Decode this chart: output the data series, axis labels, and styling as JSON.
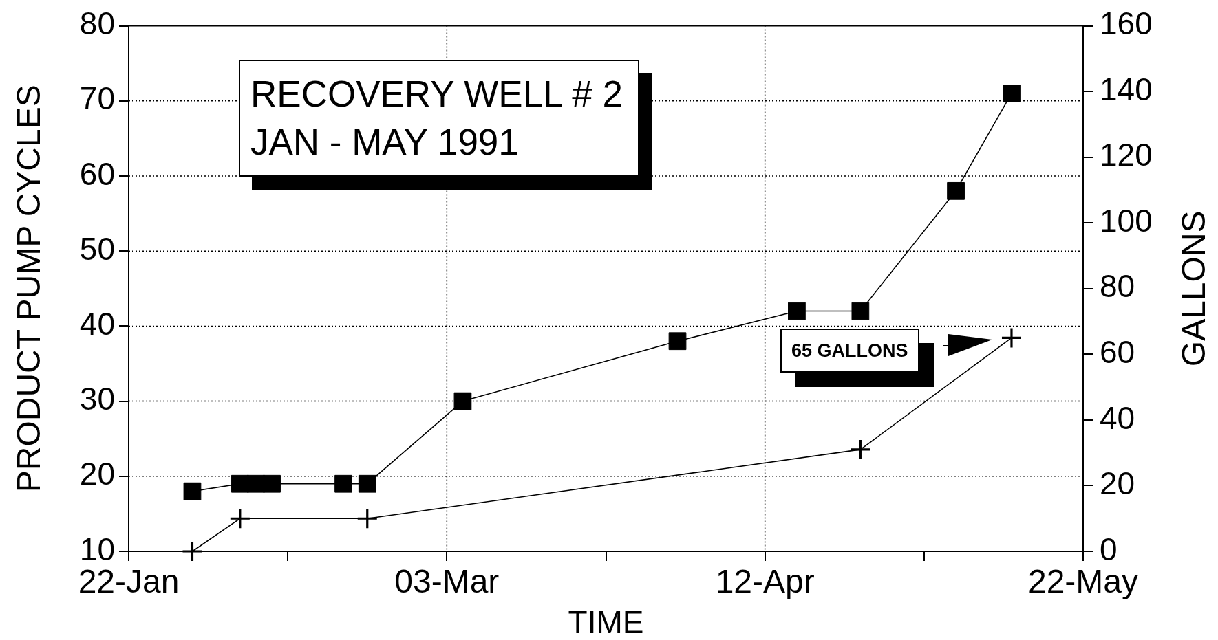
{
  "chart_data": {
    "type": "line",
    "title": "RECOVERY WELL # 2",
    "subtitle": "JAN - MAY 1991",
    "xlabel": "TIME",
    "ylabel": "PRODUCT PUMP CYCLES",
    "y2label": "GALLONS",
    "series": [
      {
        "color": "#000000",
        "marker": "square",
        "x": [
          "1991-01-30",
          "1991-02-05",
          "1991-02-07",
          "1991-02-09",
          "1991-02-18",
          "1991-02-21",
          "1991-03-05",
          "1991-04-01",
          "1991-04-16",
          "1991-04-24",
          "1991-05-06",
          "1991-05-13"
        ],
        "values": [
          18,
          19,
          19,
          19,
          19,
          19,
          30,
          38,
          42,
          42,
          58,
          71
        ]
      },
      {
        "color": "#000000",
        "marker": "cross",
        "axis": "y2",
        "x": [
          "1991-01-30",
          "1991-02-05",
          "1991-02-21",
          "1991-04-24",
          "1991-05-13"
        ],
        "values": [
          0,
          10,
          10,
          31,
          65
        ]
      }
    ],
    "xlim": [
      "1991-01-22",
      "1991-05-22"
    ],
    "xticks": [
      {
        "value": "1991-01-22",
        "label": "22-Jan"
      },
      {
        "value": "1991-02-11",
        "label": null
      },
      {
        "value": "1991-03-03",
        "label": "03-Mar"
      },
      {
        "value": "1991-03-23",
        "label": null
      },
      {
        "value": "1991-04-12",
        "label": "12-Apr"
      },
      {
        "value": "1991-05-02",
        "label": null
      },
      {
        "value": "1991-05-22",
        "label": "22-May"
      }
    ],
    "ylim": [
      10,
      80
    ],
    "yticks": [
      10,
      20,
      30,
      40,
      50,
      60,
      70,
      80
    ],
    "y2lim": [
      0,
      160
    ],
    "y2ticks": [
      0,
      20,
      40,
      60,
      80,
      100,
      120,
      140,
      160
    ],
    "grid": true,
    "annotations": [
      "65 GALLONS"
    ]
  }
}
